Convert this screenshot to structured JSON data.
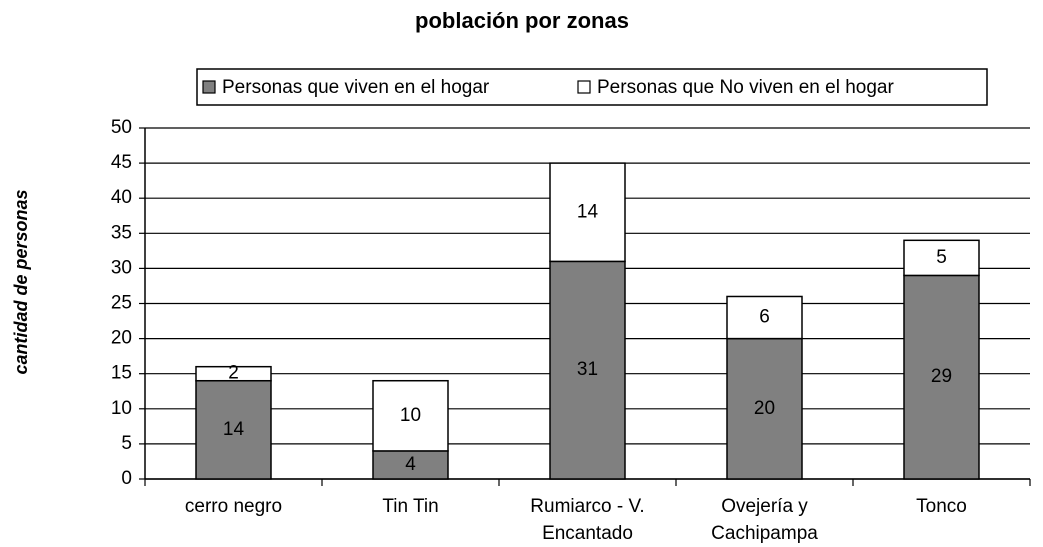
{
  "chart_data": {
    "type": "stacked_bar",
    "title": "población por zonas",
    "y_label": "cantidad de personas",
    "categories": [
      "cerro negro",
      "Tin Tin",
      "Rumiarco - V. Encantado",
      "Ovejería y Cachipampa",
      "Tonco"
    ],
    "series": [
      {
        "name": "Personas que viven en el hogar",
        "color": "#808080",
        "values": [
          14,
          4,
          31,
          20,
          29
        ]
      },
      {
        "name": "Personas que No viven en el hogar",
        "color": "#ffffff",
        "values": [
          2,
          10,
          14,
          6,
          5
        ]
      }
    ],
    "ylim": [
      0,
      50
    ],
    "yticks": [
      0,
      5,
      10,
      15,
      20,
      25,
      30,
      35,
      40,
      45,
      50
    ],
    "grid": true,
    "legend": "top"
  }
}
